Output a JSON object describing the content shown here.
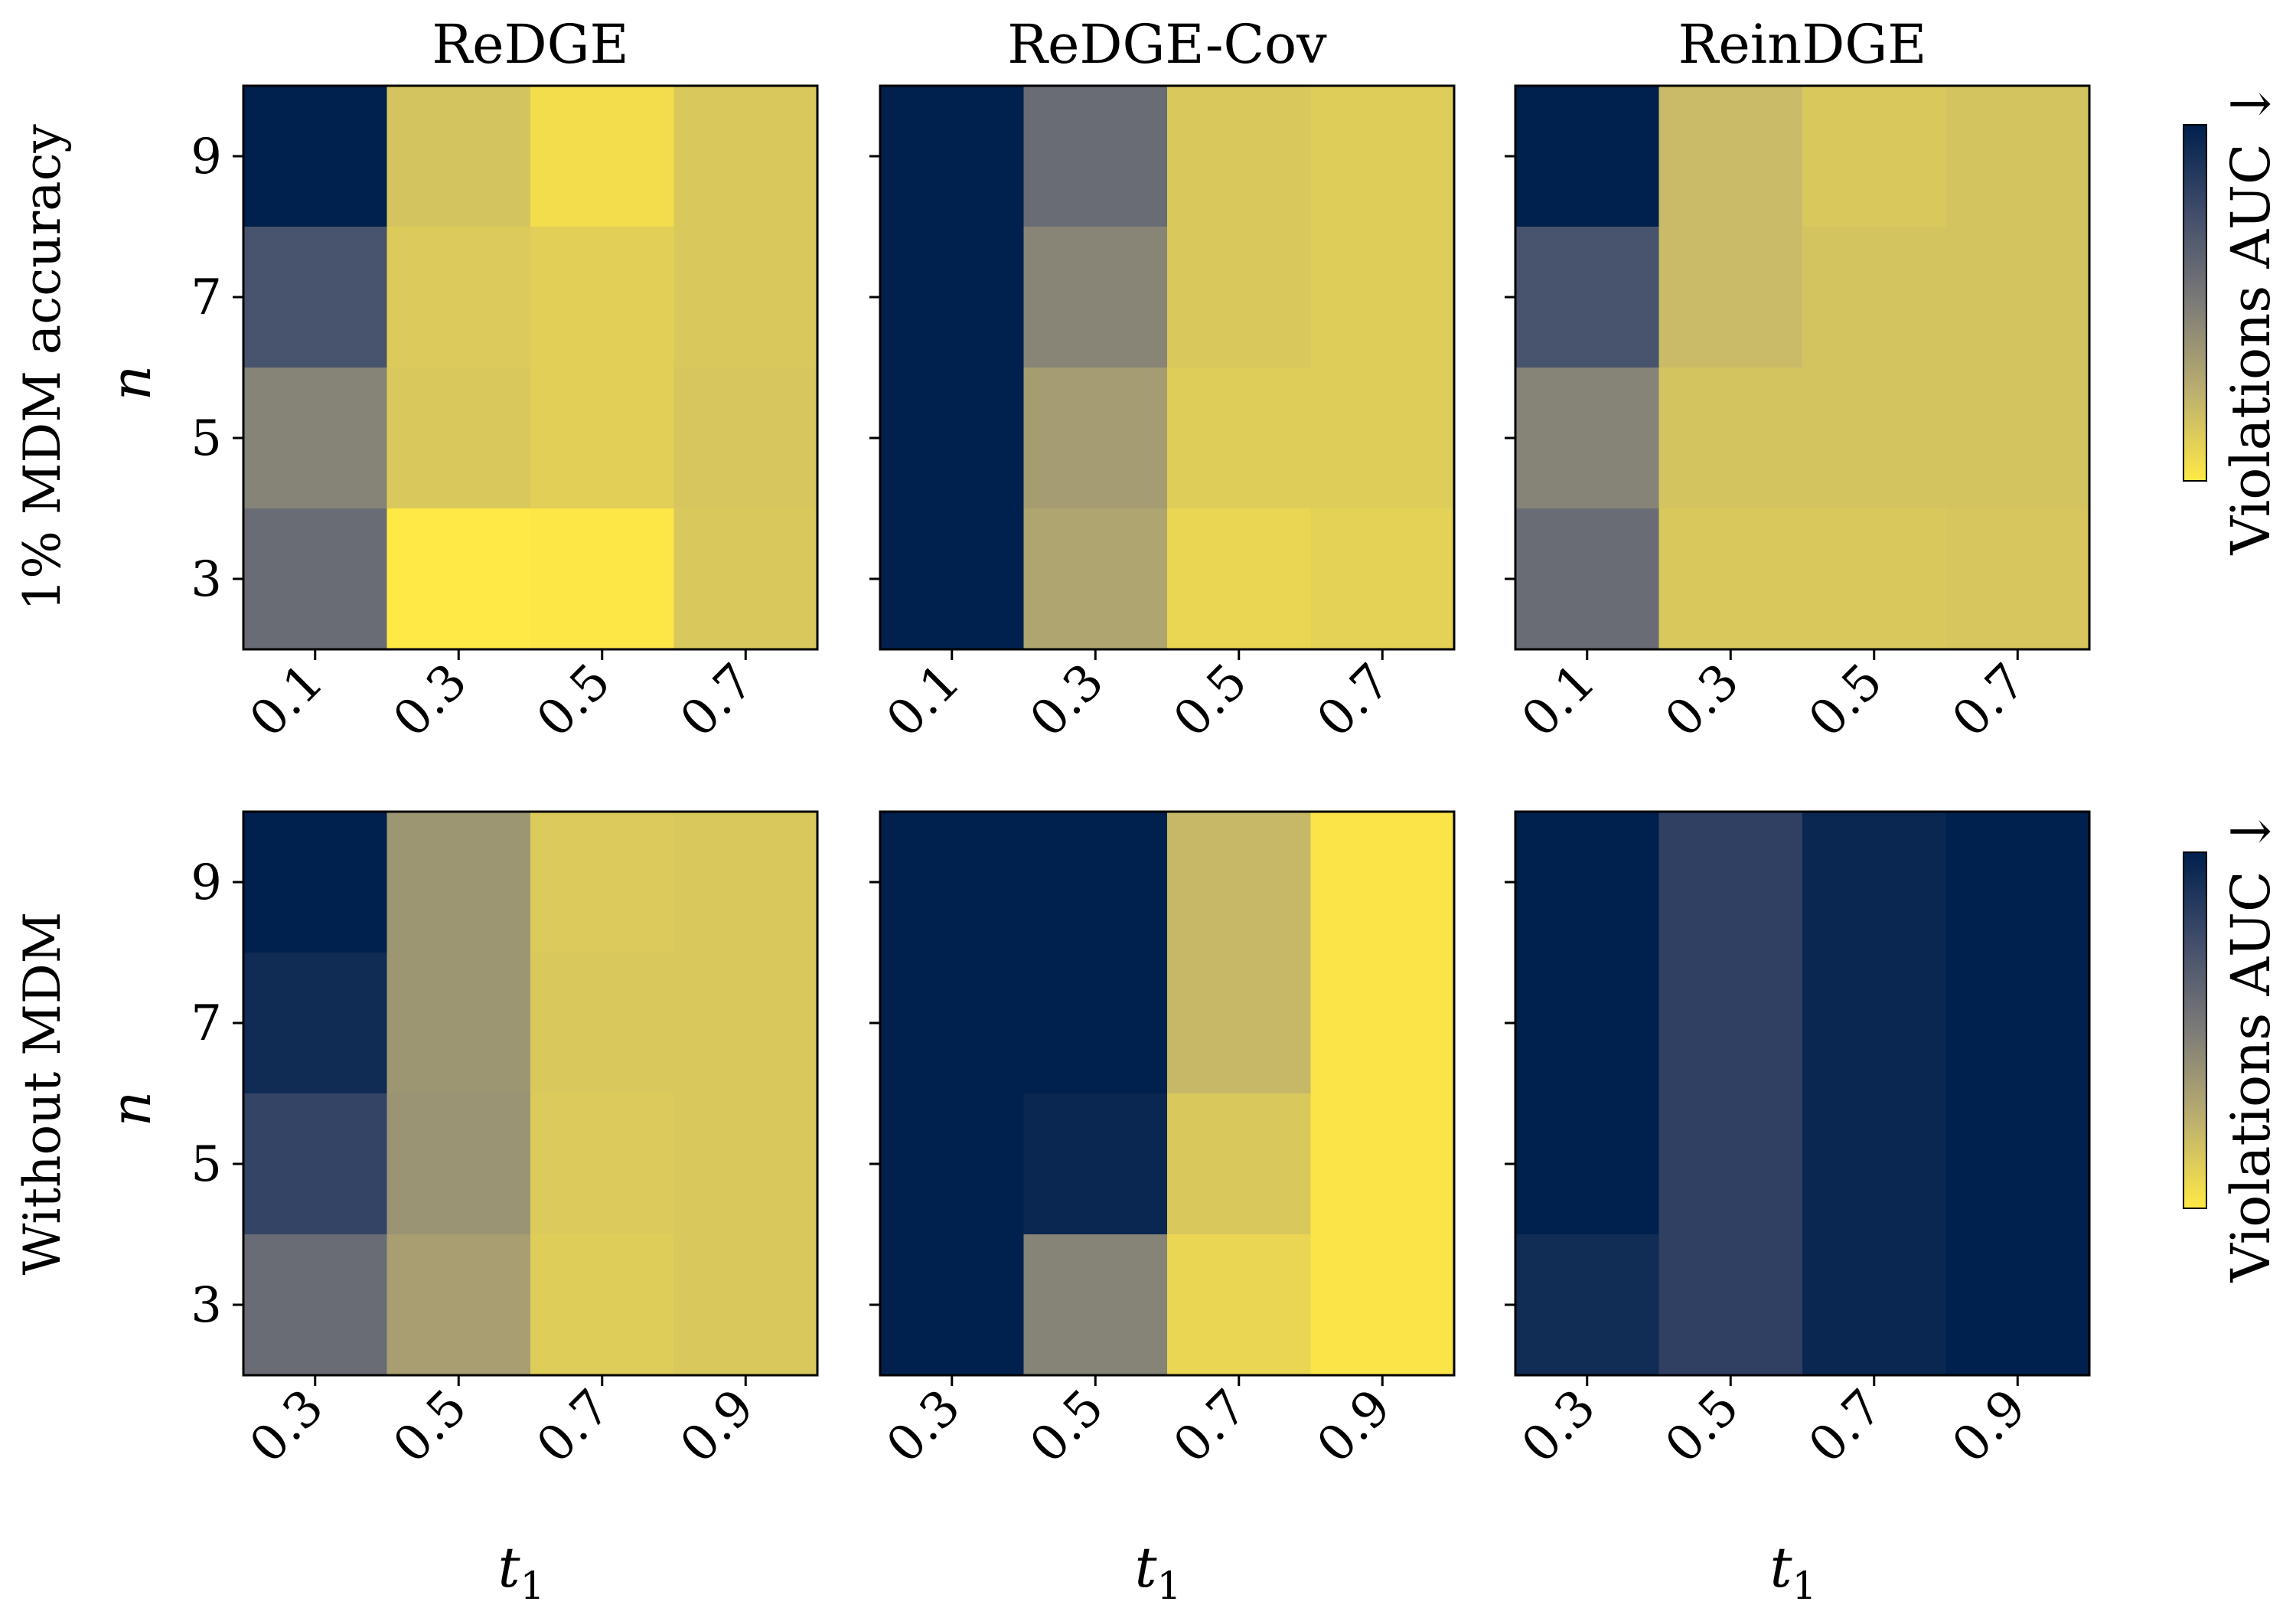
{
  "figure": {
    "column_titles": [
      "ReDGE",
      "ReDGE-Cov",
      "ReinDGE"
    ],
    "row_labels": [
      "1% MDM accuracy",
      "Without MDM"
    ],
    "y_axis_label": "n",
    "x_axis_label": "t",
    "x_axis_subscript": "1",
    "colorbar_label": "Violations AUC ↓"
  },
  "colors": {
    "colormap": "cividis",
    "ordered_stops": [
      "#00204d",
      "#414d6b",
      "#7c7b78",
      "#bcaf6f",
      "#ffe945"
    ]
  },
  "chart_data": [
    {
      "type": "heatmap",
      "title": "ReDGE",
      "row_label": "1% MDM accuracy",
      "xlabel": "t1",
      "ylabel": "n",
      "x": [
        0.1,
        0.3,
        0.5,
        0.7
      ],
      "y": [
        9,
        7,
        5,
        3
      ],
      "x_tick_labels": [
        "0.1",
        "0.3",
        "0.5",
        "0.7"
      ],
      "y_tick_labels": [
        "9",
        "7",
        "5",
        "3"
      ],
      "values": [
        [
          1.0,
          0.16,
          0.05,
          0.14
        ],
        [
          0.72,
          0.13,
          0.11,
          0.14
        ],
        [
          0.46,
          0.14,
          0.11,
          0.15
        ],
        [
          0.58,
          0.0,
          0.01,
          0.14
        ]
      ],
      "color_scale": "relative within panel (0 = yellow, 1 = dark blue)"
    },
    {
      "type": "heatmap",
      "title": "ReDGE-Cov",
      "row_label": "1% MDM accuracy",
      "xlabel": "t1",
      "ylabel": "n",
      "x": [
        0.1,
        0.3,
        0.5,
        0.7
      ],
      "y": [
        9,
        7,
        5,
        3
      ],
      "x_tick_labels": [
        "0.1",
        "0.3",
        "0.5",
        "0.7"
      ],
      "y_tick_labels": [
        "9",
        "7",
        "5",
        "3"
      ],
      "values": [
        [
          1.0,
          0.58,
          0.14,
          0.12
        ],
        [
          1.0,
          0.45,
          0.14,
          0.12
        ],
        [
          1.0,
          0.34,
          0.12,
          0.12
        ],
        [
          1.0,
          0.3,
          0.08,
          0.1
        ]
      ],
      "color_scale": "relative within panel (0 = yellow, 1 = dark blue)"
    },
    {
      "type": "heatmap",
      "title": "ReinDGE",
      "row_label": "1% MDM accuracy",
      "xlabel": "t1",
      "ylabel": "n",
      "x": [
        0.1,
        0.3,
        0.5,
        0.7
      ],
      "y": [
        9,
        7,
        5,
        3
      ],
      "x_tick_labels": [
        "0.1",
        "0.3",
        "0.5",
        "0.7"
      ],
      "y_tick_labels": [
        "9",
        "7",
        "5",
        "3"
      ],
      "values": [
        [
          1.0,
          0.2,
          0.14,
          0.16
        ],
        [
          0.72,
          0.2,
          0.16,
          0.16
        ],
        [
          0.46,
          0.16,
          0.16,
          0.16
        ],
        [
          0.58,
          0.14,
          0.14,
          0.15
        ]
      ],
      "color_scale": "relative within panel (0 = yellow, 1 = dark blue)"
    },
    {
      "type": "heatmap",
      "title": "ReDGE",
      "row_label": "Without MDM",
      "xlabel": "t1",
      "ylabel": "n",
      "x": [
        0.3,
        0.5,
        0.7,
        0.9
      ],
      "y": [
        9,
        7,
        5,
        3
      ],
      "x_tick_labels": [
        "0.3",
        "0.5",
        "0.7",
        "0.9"
      ],
      "y_tick_labels": [
        "9",
        "7",
        "5",
        "3"
      ],
      "values": [
        [
          1.0,
          0.37,
          0.13,
          0.14
        ],
        [
          0.94,
          0.37,
          0.14,
          0.14
        ],
        [
          0.8,
          0.38,
          0.13,
          0.14
        ],
        [
          0.58,
          0.33,
          0.12,
          0.14
        ]
      ],
      "color_scale": "relative within panel (0 = yellow, 1 = dark blue)"
    },
    {
      "type": "heatmap",
      "title": "ReDGE-Cov",
      "row_label": "Without MDM",
      "xlabel": "t1",
      "ylabel": "n",
      "x": [
        0.3,
        0.5,
        0.7,
        0.9
      ],
      "y": [
        9,
        7,
        5,
        3
      ],
      "x_tick_labels": [
        "0.3",
        "0.5",
        "0.7",
        "0.9"
      ],
      "y_tick_labels": [
        "9",
        "7",
        "5",
        "3"
      ],
      "values": [
        [
          1.0,
          1.0,
          0.21,
          0.02
        ],
        [
          1.0,
          1.0,
          0.21,
          0.02
        ],
        [
          1.0,
          0.96,
          0.14,
          0.02
        ],
        [
          1.0,
          0.46,
          0.08,
          0.02
        ]
      ],
      "color_scale": "relative within panel (0 = yellow, 1 = dark blue)"
    },
    {
      "type": "heatmap",
      "title": "ReinDGE",
      "row_label": "Without MDM",
      "xlabel": "t1",
      "ylabel": "n",
      "x": [
        0.3,
        0.5,
        0.7,
        0.9
      ],
      "y": [
        9,
        7,
        5,
        3
      ],
      "x_tick_labels": [
        "0.3",
        "0.5",
        "0.7",
        "0.9"
      ],
      "y_tick_labels": [
        "9",
        "7",
        "5",
        "3"
      ],
      "values": [
        [
          1.0,
          0.82,
          0.96,
          1.0
        ],
        [
          1.0,
          0.82,
          0.96,
          1.0
        ],
        [
          1.0,
          0.82,
          0.96,
          1.0
        ],
        [
          0.93,
          0.82,
          0.96,
          1.0
        ]
      ],
      "color_scale": "relative within panel (0 = yellow, 1 = dark blue)"
    }
  ]
}
